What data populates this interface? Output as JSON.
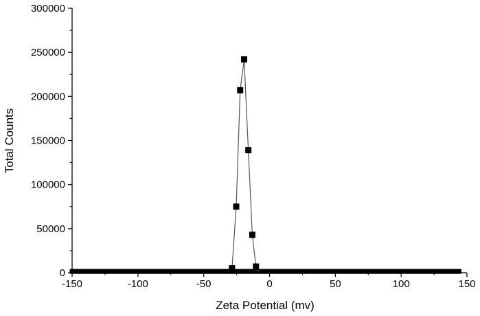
{
  "chart_data": {
    "type": "scatter",
    "title": "",
    "xlabel": "Zeta Potential (mv)",
    "ylabel": "Total Counts",
    "xlim": [
      -150,
      150
    ],
    "ylim": [
      0,
      300000
    ],
    "x_ticks": [
      -150,
      -100,
      -50,
      0,
      50,
      100,
      150
    ],
    "y_ticks": [
      0,
      50000,
      100000,
      150000,
      200000,
      250000,
      300000
    ],
    "grid": false,
    "legend": "none",
    "line_color": "#555555",
    "marker_color": "#000000",
    "series": [
      {
        "x": [
          -28.5,
          -25.3,
          -22.3,
          -19.3,
          -16.1,
          -13.1,
          -10.3
        ],
        "y": [
          5000,
          75000,
          207000,
          242000,
          139000,
          43000,
          7000
        ]
      }
    ],
    "baseline": {
      "x_start": -150,
      "x_end": 145,
      "x_step": 1.2,
      "y": 1500
    }
  }
}
